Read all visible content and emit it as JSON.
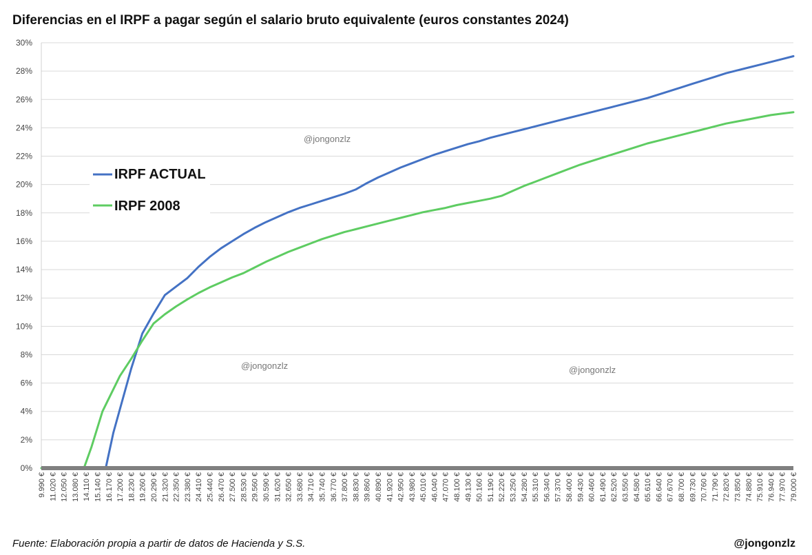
{
  "chart_data": {
    "type": "line",
    "title": "Diferencias en el IRPF a pagar según el salario bruto equivalente (euros constantes 2024)",
    "xlabel": "",
    "ylabel": "",
    "ylim": [
      0,
      30
    ],
    "y_ticks": [
      "0%",
      "2%",
      "4%",
      "6%",
      "8%",
      "10%",
      "12%",
      "14%",
      "16%",
      "18%",
      "20%",
      "22%",
      "24%",
      "26%",
      "28%",
      "30%"
    ],
    "x_categories": [
      "9.990 €",
      "11.020 €",
      "12.050 €",
      "13.080 €",
      "14.110 €",
      "15.140 €",
      "16.170 €",
      "17.200 €",
      "18.230 €",
      "19.260 €",
      "20.290 €",
      "21.320 €",
      "22.350 €",
      "23.380 €",
      "24.410 €",
      "25.440 €",
      "26.470 €",
      "27.500 €",
      "28.530 €",
      "29.560 €",
      "30.590 €",
      "31.620 €",
      "32.650 €",
      "33.680 €",
      "34.710 €",
      "35.740 €",
      "36.770 €",
      "37.800 €",
      "38.830 €",
      "39.860 €",
      "40.890 €",
      "41.920 €",
      "42.950 €",
      "43.980 €",
      "45.010 €",
      "46.040 €",
      "47.070 €",
      "48.100 €",
      "49.130 €",
      "50.160 €",
      "51.190 €",
      "52.220 €",
      "53.250 €",
      "54.280 €",
      "55.310 €",
      "56.340 €",
      "57.370 €",
      "58.400 €",
      "59.430 €",
      "60.460 €",
      "61.490 €",
      "62.520 €",
      "63.550 €",
      "64.580 €",
      "65.610 €",
      "66.640 €",
      "67.670 €",
      "68.700 €",
      "69.730 €",
      "70.760 €",
      "71.790 €",
      "72.820 €",
      "73.850 €",
      "74.880 €",
      "75.910 €",
      "76.940 €",
      "77.970 €",
      "79.000 €"
    ],
    "legend_position": "left",
    "grid": true,
    "series": [
      {
        "name": "IRPF ACTUAL",
        "color": "#4472c4",
        "points": [
          [
            9990,
            0
          ],
          [
            15900,
            0
          ],
          [
            16600,
            2.5
          ],
          [
            18230,
            7.0
          ],
          [
            19260,
            9.5
          ],
          [
            20290,
            10.9
          ],
          [
            21320,
            12.2
          ],
          [
            22350,
            12.8
          ],
          [
            23380,
            13.4
          ],
          [
            24410,
            14.2
          ],
          [
            25440,
            14.9
          ],
          [
            26470,
            15.5
          ],
          [
            27500,
            16.0
          ],
          [
            28530,
            16.5
          ],
          [
            29560,
            16.95
          ],
          [
            30590,
            17.35
          ],
          [
            31620,
            17.7
          ],
          [
            32650,
            18.05
          ],
          [
            33680,
            18.35
          ],
          [
            34710,
            18.6
          ],
          [
            35740,
            18.85
          ],
          [
            36770,
            19.1
          ],
          [
            37800,
            19.35
          ],
          [
            38830,
            19.65
          ],
          [
            39860,
            20.1
          ],
          [
            40890,
            20.5
          ],
          [
            41920,
            20.85
          ],
          [
            42950,
            21.2
          ],
          [
            43980,
            21.5
          ],
          [
            45010,
            21.8
          ],
          [
            46040,
            22.1
          ],
          [
            47070,
            22.35
          ],
          [
            48100,
            22.6
          ],
          [
            49130,
            22.85
          ],
          [
            50160,
            23.05
          ],
          [
            51190,
            23.3
          ],
          [
            52220,
            23.5
          ],
          [
            53250,
            23.7
          ],
          [
            54280,
            23.9
          ],
          [
            55310,
            24.1
          ],
          [
            56340,
            24.3
          ],
          [
            57370,
            24.5
          ],
          [
            58400,
            24.7
          ],
          [
            59430,
            24.9
          ],
          [
            60460,
            25.1
          ],
          [
            61490,
            25.3
          ],
          [
            62520,
            25.5
          ],
          [
            63550,
            25.7
          ],
          [
            64580,
            25.9
          ],
          [
            65610,
            26.1
          ],
          [
            66640,
            26.35
          ],
          [
            67670,
            26.6
          ],
          [
            68700,
            26.85
          ],
          [
            69730,
            27.1
          ],
          [
            70760,
            27.35
          ],
          [
            71790,
            27.6
          ],
          [
            72820,
            27.85
          ],
          [
            73850,
            28.05
          ],
          [
            74880,
            28.25
          ],
          [
            75910,
            28.45
          ],
          [
            76940,
            28.65
          ],
          [
            77970,
            28.85
          ],
          [
            79000,
            29.05
          ]
        ]
      },
      {
        "name": "IRPF 2008",
        "color": "#5ecc62",
        "points": [
          [
            9990,
            0
          ],
          [
            13900,
            0
          ],
          [
            14600,
            1.5
          ],
          [
            15600,
            4.0
          ],
          [
            17200,
            6.5
          ],
          [
            18230,
            7.7
          ],
          [
            19260,
            9.0
          ],
          [
            20290,
            10.2
          ],
          [
            21320,
            10.85
          ],
          [
            22350,
            11.4
          ],
          [
            23380,
            11.9
          ],
          [
            24410,
            12.35
          ],
          [
            25440,
            12.75
          ],
          [
            26470,
            13.1
          ],
          [
            27500,
            13.45
          ],
          [
            28530,
            13.75
          ],
          [
            29560,
            14.15
          ],
          [
            30590,
            14.55
          ],
          [
            31620,
            14.9
          ],
          [
            32650,
            15.25
          ],
          [
            33680,
            15.55
          ],
          [
            34710,
            15.85
          ],
          [
            35740,
            16.15
          ],
          [
            36770,
            16.4
          ],
          [
            37800,
            16.65
          ],
          [
            38830,
            16.85
          ],
          [
            39860,
            17.05
          ],
          [
            40890,
            17.25
          ],
          [
            41920,
            17.45
          ],
          [
            42950,
            17.65
          ],
          [
            43980,
            17.85
          ],
          [
            45010,
            18.05
          ],
          [
            46040,
            18.2
          ],
          [
            47070,
            18.35
          ],
          [
            48100,
            18.55
          ],
          [
            49130,
            18.7
          ],
          [
            50160,
            18.85
          ],
          [
            51190,
            19.0
          ],
          [
            52220,
            19.2
          ],
          [
            53250,
            19.55
          ],
          [
            54280,
            19.9
          ],
          [
            55310,
            20.2
          ],
          [
            56340,
            20.5
          ],
          [
            57370,
            20.8
          ],
          [
            58400,
            21.1
          ],
          [
            59430,
            21.4
          ],
          [
            60460,
            21.65
          ],
          [
            61490,
            21.9
          ],
          [
            62520,
            22.15
          ],
          [
            63550,
            22.4
          ],
          [
            64580,
            22.65
          ],
          [
            65610,
            22.9
          ],
          [
            66640,
            23.1
          ],
          [
            67670,
            23.3
          ],
          [
            68700,
            23.5
          ],
          [
            69730,
            23.7
          ],
          [
            70760,
            23.9
          ],
          [
            71790,
            24.1
          ],
          [
            72820,
            24.3
          ],
          [
            73850,
            24.45
          ],
          [
            74880,
            24.6
          ],
          [
            75910,
            24.75
          ],
          [
            76940,
            24.9
          ],
          [
            77970,
            25.0
          ],
          [
            79000,
            25.1
          ]
        ]
      }
    ],
    "watermarks": [
      "@jongonzlz",
      "@jongonzlz",
      "@jongonzlz"
    ],
    "source": "Fuente: Elaboración propia a partir de datos de Hacienda y S.S.",
    "handle": "@jongonzlz"
  }
}
